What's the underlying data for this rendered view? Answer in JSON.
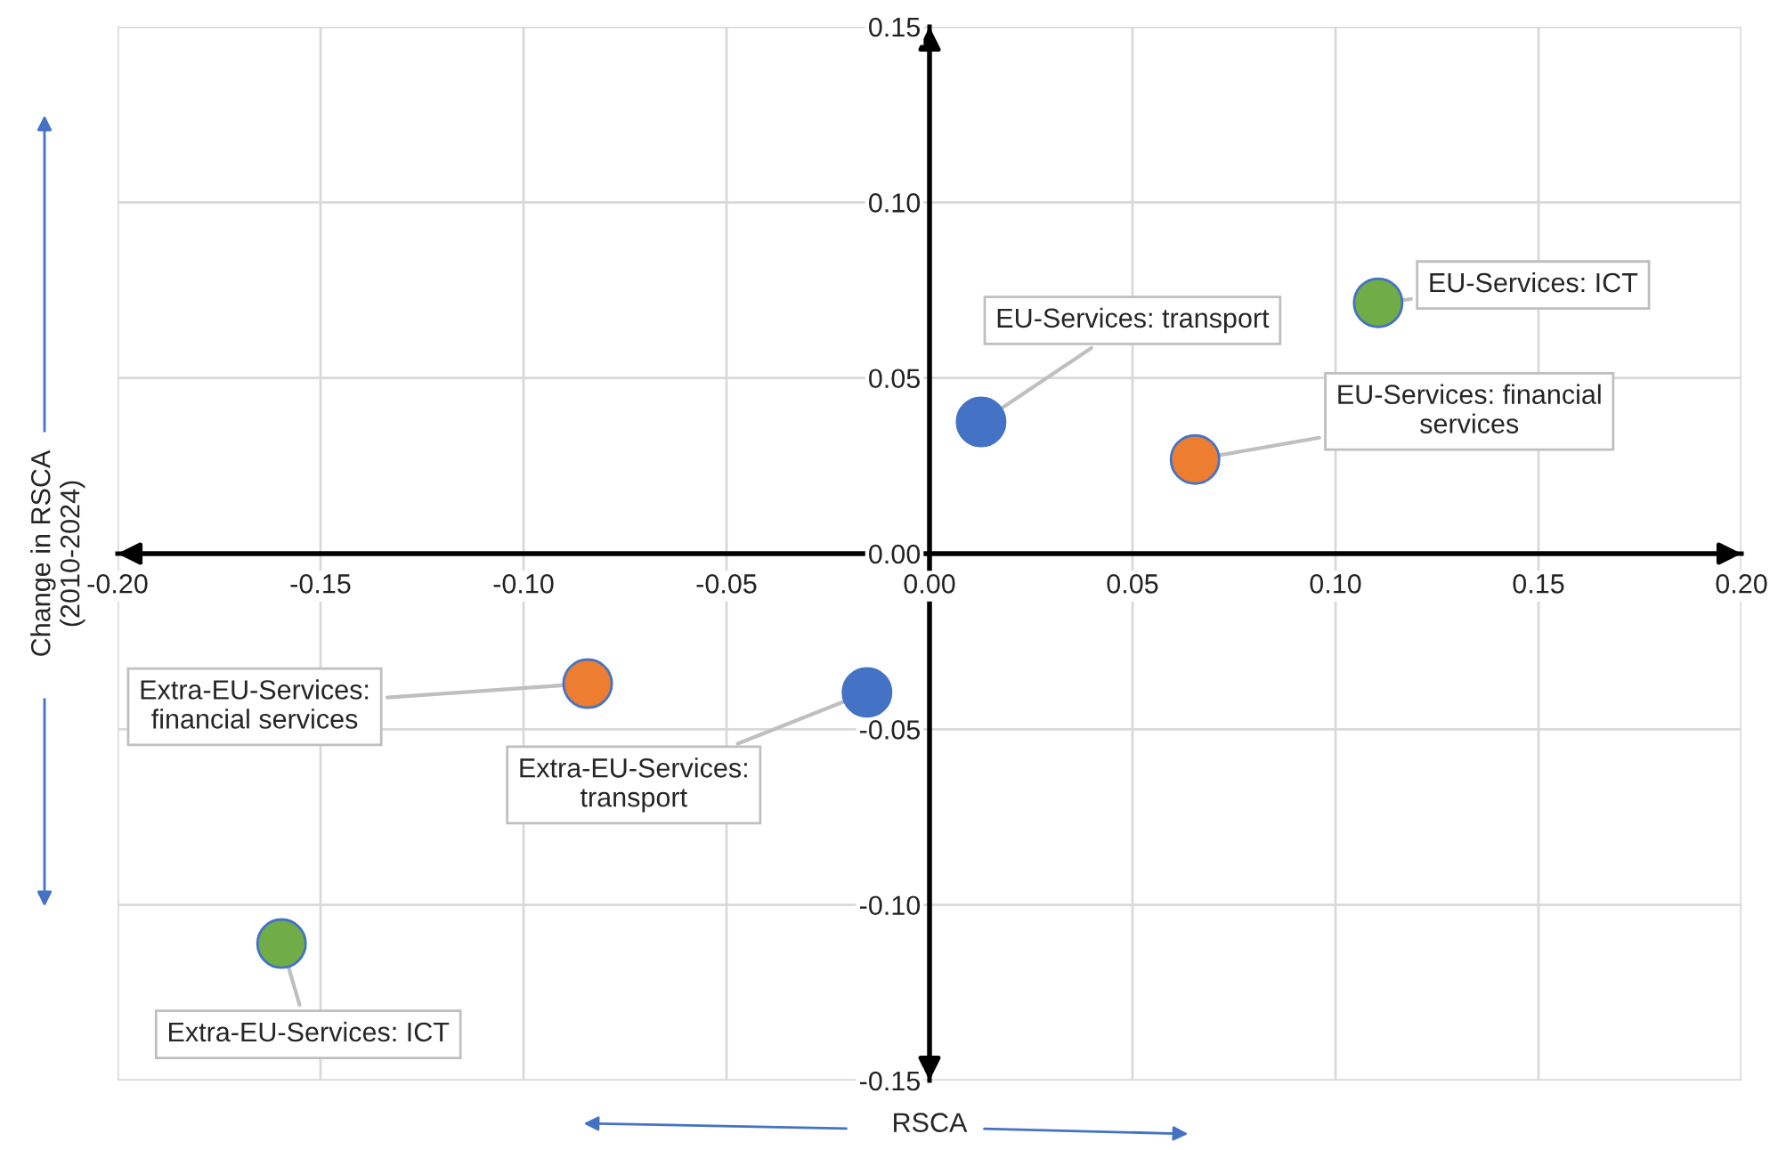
{
  "chart_data": {
    "type": "scatter",
    "xlabel": "RSCA",
    "ylabel": "Change in RSCA\n(2010-2024)",
    "x": [
      0.0127,
      0.1105,
      0.0654,
      -0.0842,
      -0.0154,
      -0.1596
    ],
    "values": [
      0.0375,
      0.0714,
      0.0268,
      -0.037,
      -0.0395,
      -0.111
    ],
    "colors": [
      "#4472c4",
      "#70ad47",
      "#ed7d31",
      "#ed7d31",
      "#4472c4",
      "#70ad47"
    ],
    "xlim": [
      -0.2,
      0.2
    ],
    "ylim": [
      -0.15,
      0.15
    ],
    "xticks": [
      {
        "value": -0.2,
        "label": "-0.20"
      },
      {
        "value": -0.15,
        "label": "-0.15"
      },
      {
        "value": -0.1,
        "label": "-0.10"
      },
      {
        "value": -0.05,
        "label": "-0.05"
      },
      {
        "value": 0,
        "label": "0.00"
      },
      {
        "value": 0.05,
        "label": "0.05"
      },
      {
        "value": 0.1,
        "label": "0.10"
      },
      {
        "value": 0.15,
        "label": "0.15"
      },
      {
        "value": 0.2,
        "label": "0.20"
      }
    ],
    "yticks": [
      {
        "value": -0.15,
        "label": "-0.15"
      },
      {
        "value": -0.1,
        "label": "-0.10"
      },
      {
        "value": -0.05,
        "label": "-0.05"
      },
      {
        "value": 0,
        "label": "0.00"
      },
      {
        "value": 0.05,
        "label": "0.05"
      },
      {
        "value": 0.1,
        "label": "0.10"
      },
      {
        "value": 0.15,
        "label": "0.15"
      }
    ],
    "grid": true,
    "marker": "circle",
    "annotations": [
      {
        "text": "EU-Services: transport",
        "x": 0.0127,
        "y": 0.0375
      },
      {
        "text": "EU-Services: ICT",
        "x": 0.1105,
        "y": 0.0714
      },
      {
        "text": "EU-Services: financial\nservices",
        "x": 0.0654,
        "y": 0.0268
      },
      {
        "text": "Extra-EU-Services:\nfinancial services",
        "x": -0.0842,
        "y": -0.037
      },
      {
        "text": "Extra-EU-Services:\ntransport",
        "x": -0.0154,
        "y": -0.0395
      },
      {
        "text": "Extra-EU-Services: ICT",
        "x": -0.1596,
        "y": -0.111
      }
    ]
  }
}
